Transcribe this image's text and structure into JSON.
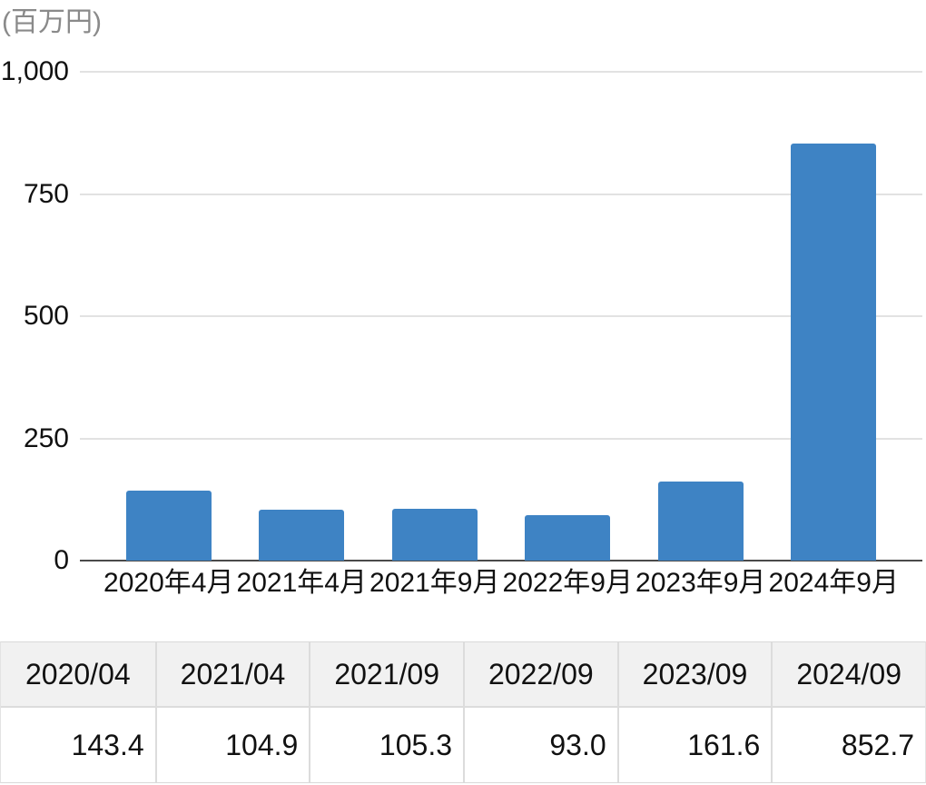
{
  "chart_data": {
    "type": "bar",
    "categories": [
      "2020年4月",
      "2021年4月",
      "2021年9月",
      "2022年9月",
      "2023年9月",
      "2024年9月"
    ],
    "values": [
      143.4,
      104.9,
      105.3,
      93.0,
      161.6,
      852.7
    ],
    "title": "",
    "xlabel": "",
    "ylabel": "(百万円)",
    "ylim": [
      0,
      1000
    ],
    "yticks": [
      0,
      250,
      500,
      750,
      1000
    ],
    "ytick_labels": [
      "0",
      "250",
      "500",
      "750",
      "1,000"
    ],
    "grid": true,
    "legend": "none",
    "bar_color": "#3e83c4"
  },
  "table": {
    "headers": [
      "2020/04",
      "2021/04",
      "2021/09",
      "2022/09",
      "2023/09",
      "2024/09"
    ],
    "values": [
      "143.4",
      "104.9",
      "105.3",
      "93.0",
      "161.6",
      "852.7"
    ]
  },
  "colors": {
    "bar": "#3e83c4",
    "gridline": "#e2e2e2",
    "axis_line": "#4a4a4a",
    "unit_label_text": "#8a8a8a",
    "text": "#111111",
    "table_header_bg": "#f1f1f1",
    "table_border": "#dcdcdc"
  }
}
